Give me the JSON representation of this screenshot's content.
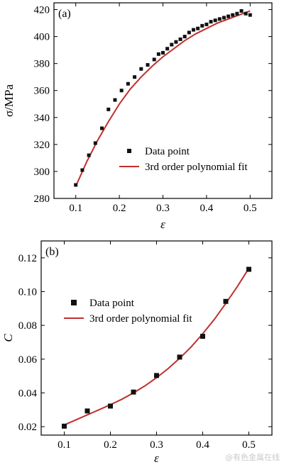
{
  "colors": {
    "fit": "#c0302e",
    "point": "#111111",
    "axis": "#000000"
  },
  "watermark": "@有色金属在线",
  "chart_data": [
    {
      "type": "scatter",
      "panel_label": "(a)",
      "xlabel": "ε",
      "ylabel": "σ/MPa",
      "xlim": [
        0.05,
        0.55
      ],
      "ylim": [
        280,
        425
      ],
      "xticks": [
        0.1,
        0.2,
        0.3,
        0.4,
        0.5
      ],
      "yticks": [
        280,
        300,
        320,
        340,
        360,
        380,
        400,
        420
      ],
      "xtick_labels": [
        "0.1",
        "0.2",
        "0.3",
        "0.4",
        "0.5"
      ],
      "ytick_labels": [
        "280",
        "300",
        "320",
        "340",
        "360",
        "380",
        "400",
        "420"
      ],
      "legend_position": "lower-right",
      "series": [
        {
          "name": "Data point",
          "marker": "square-small",
          "x": [
            0.1,
            0.115,
            0.13,
            0.145,
            0.16,
            0.175,
            0.19,
            0.205,
            0.22,
            0.235,
            0.25,
            0.265,
            0.28,
            0.29,
            0.3,
            0.31,
            0.32,
            0.33,
            0.34,
            0.35,
            0.36,
            0.37,
            0.38,
            0.39,
            0.4,
            0.41,
            0.42,
            0.43,
            0.44,
            0.45,
            0.46,
            0.47,
            0.48,
            0.49,
            0.5
          ],
          "y": [
            290,
            301,
            312,
            321,
            332,
            346,
            353,
            360,
            365,
            370,
            376,
            379,
            383,
            387,
            388,
            391,
            394,
            396,
            398,
            400,
            403,
            405,
            406,
            408,
            409,
            411,
            412,
            413,
            414,
            415,
            416,
            417,
            419,
            417,
            416
          ]
        },
        {
          "name": "3rd order polynomial fit",
          "kind": "line",
          "x": [
            0.1,
            0.125,
            0.15,
            0.175,
            0.2,
            0.225,
            0.25,
            0.275,
            0.3,
            0.325,
            0.35,
            0.375,
            0.4,
            0.425,
            0.45,
            0.475,
            0.5
          ],
          "y": [
            289,
            307,
            323,
            337,
            350,
            361,
            370,
            378,
            385,
            391,
            397,
            402,
            406,
            410,
            413,
            416,
            419
          ]
        }
      ]
    },
    {
      "type": "scatter",
      "panel_label": "(b)",
      "xlabel": "ε",
      "ylabel": "C",
      "xlim": [
        0.05,
        0.55
      ],
      "ylim": [
        0.015,
        0.13
      ],
      "xticks": [
        0.1,
        0.2,
        0.3,
        0.4,
        0.5
      ],
      "yticks": [
        0.02,
        0.04,
        0.06,
        0.08,
        0.1,
        0.12
      ],
      "xtick_labels": [
        "0.1",
        "0.2",
        "0.3",
        "0.4",
        "0.5"
      ],
      "ytick_labels": [
        "0.02",
        "0.04",
        "0.06",
        "0.08",
        "0.10",
        "0.12"
      ],
      "legend_position": "upper-left",
      "series": [
        {
          "name": "Data point",
          "marker": "square",
          "x": [
            0.1,
            0.15,
            0.2,
            0.25,
            0.3,
            0.35,
            0.4,
            0.45,
            0.5
          ],
          "y": [
            0.0203,
            0.0293,
            0.0322,
            0.0405,
            0.0503,
            0.0612,
            0.0735,
            0.0942,
            0.1132
          ]
        },
        {
          "name": "3rd order polynomial fit",
          "kind": "line",
          "x": [
            0.1,
            0.125,
            0.15,
            0.175,
            0.2,
            0.225,
            0.25,
            0.275,
            0.3,
            0.325,
            0.35,
            0.375,
            0.4,
            0.425,
            0.45,
            0.475,
            0.5
          ],
          "y": [
            0.021,
            0.024,
            0.027,
            0.03,
            0.033,
            0.0363,
            0.04,
            0.0442,
            0.049,
            0.0544,
            0.0605,
            0.0673,
            0.075,
            0.0835,
            0.093,
            0.103,
            0.1138
          ]
        }
      ]
    }
  ]
}
